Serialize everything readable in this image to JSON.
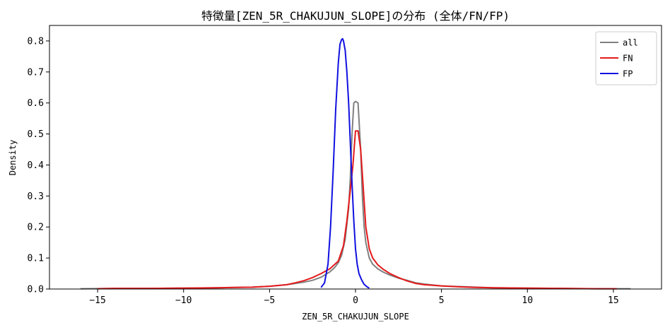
{
  "chart_data": {
    "type": "line",
    "title": "特徴量[ZEN_5R_CHAKUJUN_SLOPE]の分布 (全体/FN/FP)",
    "xlabel": "ZEN_5R_CHAKUJUN_SLOPE",
    "ylabel": "Density",
    "xlim": [
      -17.8,
      17.8
    ],
    "ylim": [
      0,
      0.85
    ],
    "xticks": [
      -15,
      -10,
      -5,
      0,
      5,
      10,
      15
    ],
    "xtick_labels": [
      "−15",
      "−10",
      "−5",
      "0",
      "5",
      "10",
      "15"
    ],
    "yticks": [
      0.0,
      0.1,
      0.2,
      0.3,
      0.4,
      0.5,
      0.6,
      0.7,
      0.8
    ],
    "ytick_labels": [
      "0.0",
      "0.1",
      "0.2",
      "0.3",
      "0.4",
      "0.5",
      "0.6",
      "0.7",
      "0.8"
    ],
    "grid": false,
    "legend_position": "top-right",
    "series": [
      {
        "name": "all",
        "color": "#808080",
        "x": [
          -16,
          -14,
          -12,
          -10,
          -8,
          -7,
          -6,
          -5,
          -4,
          -3.5,
          -3,
          -2.5,
          -2,
          -1.5,
          -1.2,
          -1,
          -0.8,
          -0.6,
          -0.4,
          -0.3,
          -0.2,
          -0.1,
          0,
          0.15,
          0.3,
          0.4,
          0.5,
          0.6,
          0.8,
          1,
          1.3,
          1.6,
          2,
          2.5,
          3,
          3.5,
          4,
          5,
          6,
          7,
          8,
          10,
          12,
          14,
          16
        ],
        "y": [
          0.001,
          0.002,
          0.002,
          0.003,
          0.004,
          0.005,
          0.006,
          0.009,
          0.014,
          0.018,
          0.022,
          0.028,
          0.038,
          0.055,
          0.07,
          0.085,
          0.11,
          0.16,
          0.26,
          0.36,
          0.5,
          0.6,
          0.605,
          0.6,
          0.45,
          0.3,
          0.2,
          0.15,
          0.1,
          0.08,
          0.065,
          0.055,
          0.045,
          0.035,
          0.028,
          0.02,
          0.016,
          0.01,
          0.008,
          0.006,
          0.004,
          0.003,
          0.002,
          0.001,
          0.001
        ]
      },
      {
        "name": "FN",
        "color": "#e41a1c",
        "x": [
          -15,
          -14,
          -12,
          -10,
          -8,
          -7,
          -6,
          -5,
          -4,
          -3.5,
          -3,
          -2.5,
          -2,
          -1.5,
          -1,
          -0.7,
          -0.5,
          -0.3,
          -0.15,
          0,
          0.15,
          0.3,
          0.45,
          0.6,
          0.8,
          1,
          1.3,
          1.6,
          2,
          2.5,
          3,
          3.5,
          4,
          5,
          6,
          7,
          8,
          10,
          12,
          14,
          15.2
        ],
        "y": [
          0.001,
          0.002,
          0.002,
          0.003,
          0.004,
          0.005,
          0.006,
          0.009,
          0.014,
          0.02,
          0.027,
          0.037,
          0.05,
          0.065,
          0.09,
          0.14,
          0.22,
          0.32,
          0.4,
          0.51,
          0.51,
          0.45,
          0.33,
          0.2,
          0.13,
          0.1,
          0.078,
          0.064,
          0.05,
          0.037,
          0.026,
          0.018,
          0.014,
          0.01,
          0.007,
          0.005,
          0.004,
          0.003,
          0.002,
          0.001,
          0.001
        ]
      },
      {
        "name": "FP",
        "color": "#1010e0",
        "x": [
          -2.0,
          -1.8,
          -1.6,
          -1.45,
          -1.3,
          -1.15,
          -1.0,
          -0.9,
          -0.8,
          -0.75,
          -0.7,
          -0.6,
          -0.5,
          -0.4,
          -0.3,
          -0.2,
          -0.1,
          0,
          0.1,
          0.2,
          0.35,
          0.5,
          0.7,
          0.8
        ],
        "y": [
          0.005,
          0.02,
          0.08,
          0.2,
          0.38,
          0.58,
          0.73,
          0.79,
          0.805,
          0.807,
          0.8,
          0.77,
          0.7,
          0.6,
          0.47,
          0.34,
          0.22,
          0.13,
          0.08,
          0.05,
          0.03,
          0.015,
          0.006,
          0.003
        ]
      }
    ]
  }
}
